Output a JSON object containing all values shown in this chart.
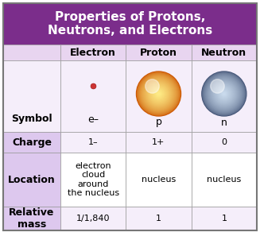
{
  "title": "Properties of Protons,\nNeutrons, and Electrons",
  "title_bg": "#7b2d8b",
  "title_color": "#ffffff",
  "header_bg": "#e8d5f0",
  "odd_row_bg": "#f5eefa",
  "even_row_bg": "#ffffff",
  "row_label_bg": "#ddc8ee",
  "col_headers": [
    "Electron",
    "Proton",
    "Neutron"
  ],
  "row_labels": [
    "Symbol",
    "Charge",
    "Location",
    "Relative\nmass"
  ],
  "symbols": [
    "e–",
    "p",
    "n"
  ],
  "charges": [
    "1–",
    "1+",
    "0"
  ],
  "locations": [
    "electron\ncloud\naround\nthe nucleus",
    "nucleus",
    "nucleus"
  ],
  "masses": [
    "1/1,840",
    "1",
    "1"
  ],
  "electron_color": "#cc3333",
  "proton_color_edge": "#cc5500",
  "proton_color_center": "#ffee88",
  "neutron_color_edge": "#445577",
  "neutron_color_center": "#ccddef",
  "cell_font_size": 8,
  "header_font_size": 9,
  "title_font_size": 11
}
